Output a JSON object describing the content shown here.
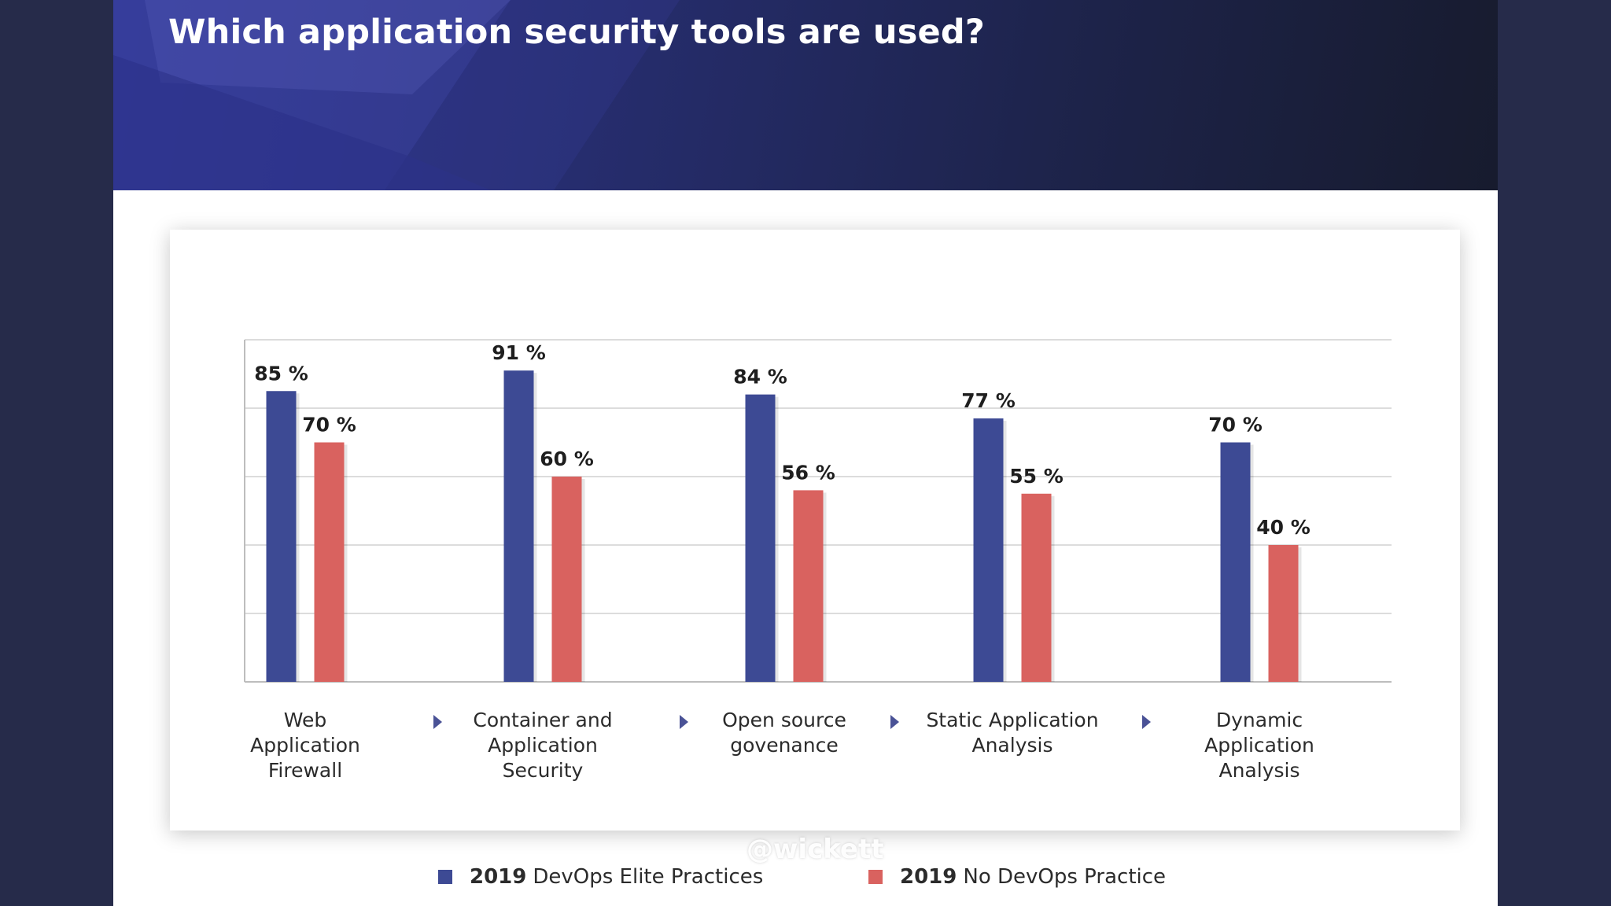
{
  "title": "Which application security tools are used?",
  "watermark": "@wickett",
  "colors": {
    "elite": "#3d4a94",
    "no_devops": "#d9625f",
    "grid": "#d0d0d0",
    "text": "#1e1e1e"
  },
  "legend": [
    {
      "year": "2019",
      "label": "DevOps Elite Practices",
      "color": "#3d4a94"
    },
    {
      "year": "2019",
      "label": "No DevOps Practice",
      "color": "#d9625f"
    }
  ],
  "chart_data": {
    "type": "bar",
    "title": "Which application security tools are used?",
    "categories": [
      "Web\nApplication\nFirewall",
      "Container and\nApplication\nSecurity",
      "Open source\ngovenance",
      "Static Application\nAnalysis",
      "Dynamic\nApplication\nAnalysis"
    ],
    "series": [
      {
        "name": "2019 DevOps Elite Practices",
        "values": [
          85,
          91,
          84,
          77,
          70
        ],
        "labels": [
          "85 %",
          "91 %",
          "84 %",
          "77 %",
          "70 %"
        ]
      },
      {
        "name": "2019 No DevOps Practice",
        "values": [
          70,
          60,
          56,
          55,
          40
        ],
        "labels": [
          "70 %",
          "60 %",
          "56 %",
          "55 %",
          "40 %"
        ]
      }
    ],
    "ylim": [
      0,
      100
    ],
    "grid": true,
    "xlabel": "",
    "ylabel": "",
    "legend_position": "bottom"
  }
}
